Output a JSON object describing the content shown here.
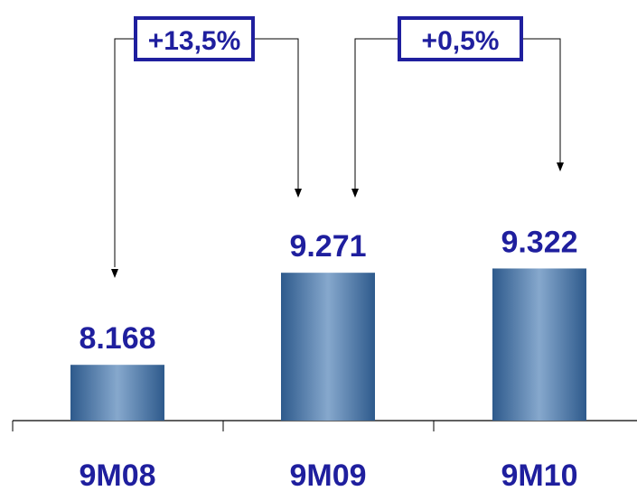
{
  "chart_data": {
    "type": "bar",
    "categories": [
      "9M08",
      "9M09",
      "9M10"
    ],
    "values": [
      8.168,
      9.271,
      9.322
    ],
    "value_labels": [
      "8.168",
      "9.271",
      "9.322"
    ],
    "ylim": [
      7.5,
      10.5
    ],
    "grid": false,
    "changes": [
      {
        "from": "9M08",
        "to": "9M09",
        "label": "+13,5%"
      },
      {
        "from": "9M09",
        "to": "9M10",
        "label": "+0,5%"
      }
    ]
  },
  "colors": {
    "bar_dark": "#2e5a8c",
    "bar_light": "#86a8cd",
    "text": "#1f1f9e",
    "axis": "#000000",
    "box_border": "#1f1f9e"
  }
}
